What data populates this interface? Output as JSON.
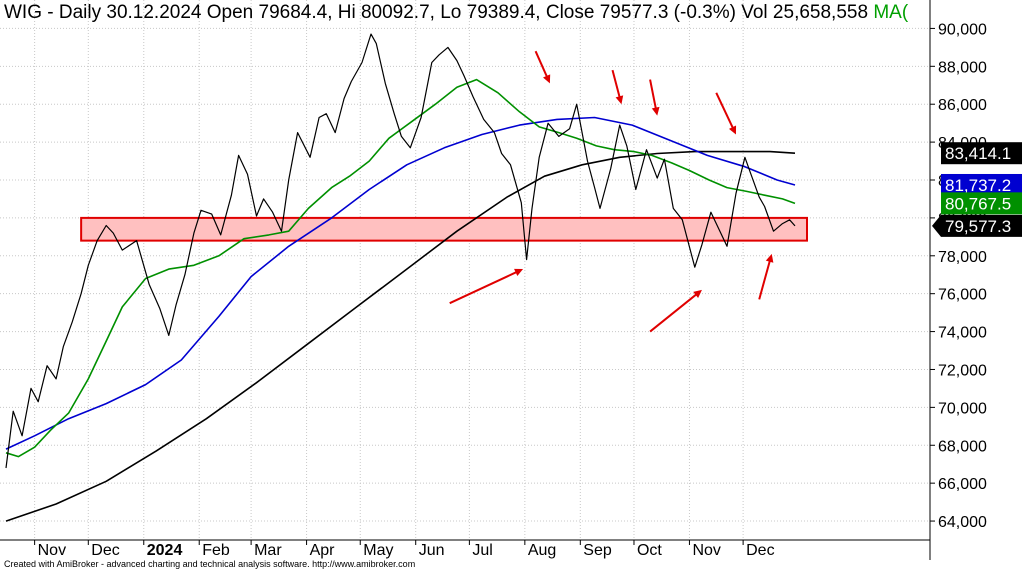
{
  "header": {
    "title": "WIG - Daily 30.12.2024 Open 79684.4, Hi 80092.7, Lo 79389.4, Close 79577.3 (-0.3%) Vol 25,658,558",
    "ma_label": "MA("
  },
  "footer": {
    "credit": "Created with AmiBroker - advanced charting and technical analysis software. http://www.amibroker.com"
  },
  "colors": {
    "price": "#000000",
    "ma_green": "#009000",
    "ma_blue": "#0000d0",
    "ma_black": "#000000",
    "zone_fill": "#ffc0c0",
    "zone_stroke": "#e00000",
    "arrow": "#e00000",
    "grid": "#c8c8c8"
  },
  "chart_data": {
    "type": "line",
    "grid": true,
    "legend": "none",
    "ylim": [
      63000,
      91500
    ],
    "y_ticks": [
      "64,000",
      "66,000",
      "68,000",
      "70,000",
      "72,000",
      "74,000",
      "76,000",
      "78,000",
      "80,000",
      "82,000",
      "84,000",
      "86,000",
      "88,000",
      "90,000"
    ],
    "y_tick_values": [
      64000,
      66000,
      68000,
      70000,
      72000,
      74000,
      76000,
      78000,
      80000,
      82000,
      84000,
      86000,
      88000,
      90000
    ],
    "x_range": [
      "2023-10-16",
      "2024-12-30"
    ],
    "x_ticks": [
      {
        "label": "Nov",
        "date": "2023-11-01",
        "bold": false
      },
      {
        "label": "Dec",
        "date": "2023-12-01",
        "bold": false
      },
      {
        "label": "2024",
        "date": "2024-01-01",
        "bold": true
      },
      {
        "label": "Feb",
        "date": "2024-02-01",
        "bold": false
      },
      {
        "label": "Mar",
        "date": "2024-03-01",
        "bold": false
      },
      {
        "label": "Apr",
        "date": "2024-04-01",
        "bold": false
      },
      {
        "label": "May",
        "date": "2024-05-01",
        "bold": false
      },
      {
        "label": "Jun",
        "date": "2024-06-01",
        "bold": false
      },
      {
        "label": "Jul",
        "date": "2024-07-01",
        "bold": false
      },
      {
        "label": "Aug",
        "date": "2024-08-01",
        "bold": false
      },
      {
        "label": "Sep",
        "date": "2024-09-01",
        "bold": false
      },
      {
        "label": "Oct",
        "date": "2024-10-01",
        "bold": false
      },
      {
        "label": "Nov",
        "date": "2024-11-01",
        "bold": false
      },
      {
        "label": "Dec",
        "date": "2024-12-01",
        "bold": false
      }
    ],
    "ohlc": {
      "date": "30.12.2024",
      "open": 79684.4,
      "high": 80092.7,
      "low": 79389.4,
      "close": 79577.3,
      "change_pct": -0.3,
      "volume": 25658558
    },
    "value_labels": [
      {
        "text": "83,414.1",
        "value": 83414.1,
        "bg": "#000000",
        "fg": "#ffffff",
        "pointer": false
      },
      {
        "text": "81,737.2",
        "value": 81737.2,
        "bg": "#0000d0",
        "fg": "#ffffff",
        "pointer": false
      },
      {
        "text": "80,767.5",
        "value": 80767.5,
        "bg": "#009000",
        "fg": "#ffffff",
        "pointer": false
      },
      {
        "text": "79,577.3",
        "value": 79577.3,
        "bg": "#000000",
        "fg": "#ffffff",
        "pointer": true
      }
    ],
    "support_zone": {
      "low": 78800,
      "high": 80000,
      "start": "2023-11-27",
      "end": "2024-12-30"
    },
    "series": [
      {
        "key": "price",
        "color": "#000000",
        "x": [
          "2023-10-16",
          "2023-10-20",
          "2023-10-25",
          "2023-10-30",
          "2023-11-03",
          "2023-11-08",
          "2023-11-13",
          "2023-11-17",
          "2023-11-22",
          "2023-11-27",
          "2023-12-01",
          "2023-12-06",
          "2023-12-11",
          "2023-12-15",
          "2023-12-20",
          "2023-12-28",
          "2024-01-04",
          "2024-01-10",
          "2024-01-15",
          "2024-01-19",
          "2024-01-24",
          "2024-01-29",
          "2024-02-02",
          "2024-02-08",
          "2024-02-13",
          "2024-02-19",
          "2024-02-23",
          "2024-02-28",
          "2024-03-04",
          "2024-03-08",
          "2024-03-13",
          "2024-03-18",
          "2024-03-22",
          "2024-03-27",
          "2024-04-03",
          "2024-04-08",
          "2024-04-12",
          "2024-04-17",
          "2024-04-22",
          "2024-04-26",
          "2024-05-02",
          "2024-05-07",
          "2024-05-10",
          "2024-05-15",
          "2024-05-20",
          "2024-05-24",
          "2024-05-29",
          "2024-06-04",
          "2024-06-10",
          "2024-06-14",
          "2024-06-19",
          "2024-06-24",
          "2024-06-28",
          "2024-07-03",
          "2024-07-09",
          "2024-07-15",
          "2024-07-19",
          "2024-07-24",
          "2024-07-30",
          "2024-08-02",
          "2024-08-05",
          "2024-08-09",
          "2024-08-14",
          "2024-08-20",
          "2024-08-26",
          "2024-08-30",
          "2024-09-05",
          "2024-09-09",
          "2024-09-12",
          "2024-09-18",
          "2024-09-23",
          "2024-09-27",
          "2024-10-02",
          "2024-10-08",
          "2024-10-14",
          "2024-10-18",
          "2024-10-23",
          "2024-10-28",
          "2024-11-04",
          "2024-11-08",
          "2024-11-13",
          "2024-11-18",
          "2024-11-22",
          "2024-11-27",
          "2024-12-02",
          "2024-12-05",
          "2024-12-10",
          "2024-12-13",
          "2024-12-18",
          "2024-12-23",
          "2024-12-27",
          "2024-12-30"
        ],
        "values": [
          66800,
          69800,
          68500,
          71000,
          70300,
          72200,
          71500,
          73200,
          74500,
          76000,
          77500,
          78800,
          79600,
          79200,
          78300,
          78800,
          76500,
          75200,
          73800,
          75400,
          77000,
          79200,
          80400,
          80200,
          79100,
          81200,
          83300,
          82300,
          80100,
          81000,
          80300,
          79300,
          82000,
          84500,
          83200,
          85300,
          85500,
          84500,
          86300,
          87200,
          88200,
          89700,
          89200,
          87100,
          85500,
          84300,
          83700,
          85300,
          88200,
          88600,
          89000,
          88300,
          87500,
          86400,
          85200,
          84500,
          83400,
          82800,
          80800,
          77800,
          80500,
          83200,
          85000,
          84300,
          84700,
          86000,
          83000,
          81600,
          80500,
          82600,
          84900,
          83800,
          81500,
          83600,
          82100,
          83100,
          80500,
          79900,
          77400,
          78600,
          80300,
          79300,
          78500,
          81300,
          83200,
          82400,
          81100,
          80600,
          79300,
          79700,
          79900,
          79577
        ]
      },
      {
        "key": "ma_green",
        "color": "#009000",
        "x": [
          "2023-10-16",
          "2023-10-23",
          "2023-11-01",
          "2023-11-10",
          "2023-11-20",
          "2023-12-01",
          "2023-12-11",
          "2023-12-20",
          "2024-01-02",
          "2024-01-15",
          "2024-01-29",
          "2024-02-12",
          "2024-02-26",
          "2024-03-11",
          "2024-03-22",
          "2024-04-02",
          "2024-04-15",
          "2024-04-25",
          "2024-05-06",
          "2024-05-17",
          "2024-05-30",
          "2024-06-12",
          "2024-06-24",
          "2024-07-05",
          "2024-07-17",
          "2024-07-29",
          "2024-08-09",
          "2024-08-20",
          "2024-08-30",
          "2024-09-10",
          "2024-09-20",
          "2024-10-01",
          "2024-10-11",
          "2024-10-22",
          "2024-11-01",
          "2024-11-12",
          "2024-11-22",
          "2024-12-03",
          "2024-12-13",
          "2024-12-23",
          "2024-12-30"
        ],
        "values": [
          67600,
          67400,
          67900,
          68800,
          69700,
          71500,
          73500,
          75300,
          76800,
          77300,
          77500,
          78000,
          78900,
          79100,
          79300,
          80500,
          81600,
          82200,
          83000,
          84200,
          85100,
          86000,
          86900,
          87300,
          86600,
          85600,
          84800,
          84500,
          84200,
          83800,
          83600,
          83500,
          83300,
          82900,
          82500,
          82000,
          81600,
          81400,
          81200,
          81000,
          80767
        ]
      },
      {
        "key": "ma_blue",
        "color": "#0000d0",
        "x": [
          "2023-10-16",
          "2023-11-01",
          "2023-11-20",
          "2023-12-11",
          "2024-01-02",
          "2024-01-22",
          "2024-02-12",
          "2024-03-01",
          "2024-03-22",
          "2024-04-15",
          "2024-05-06",
          "2024-05-27",
          "2024-06-17",
          "2024-07-08",
          "2024-07-29",
          "2024-08-19",
          "2024-09-09",
          "2024-09-30",
          "2024-10-21",
          "2024-11-11",
          "2024-12-02",
          "2024-12-20",
          "2024-12-30"
        ],
        "values": [
          67800,
          68500,
          69400,
          70200,
          71200,
          72500,
          74800,
          76900,
          78500,
          80000,
          81500,
          82800,
          83700,
          84400,
          84900,
          85200,
          85300,
          84900,
          84100,
          83300,
          82700,
          82000,
          81737
        ]
      },
      {
        "key": "ma_black",
        "color": "#000000",
        "x": [
          "2023-10-16",
          "2023-11-13",
          "2023-12-11",
          "2024-01-08",
          "2024-02-05",
          "2024-03-04",
          "2024-04-01",
          "2024-04-29",
          "2024-05-27",
          "2024-06-24",
          "2024-07-22",
          "2024-08-12",
          "2024-09-02",
          "2024-09-23",
          "2024-10-14",
          "2024-11-04",
          "2024-11-25",
          "2024-12-16",
          "2024-12-30"
        ],
        "values": [
          64000,
          64900,
          66100,
          67700,
          69400,
          71300,
          73300,
          75300,
          77300,
          79300,
          81100,
          82200,
          82800,
          83200,
          83400,
          83500,
          83500,
          83500,
          83414
        ]
      }
    ],
    "arrows": [
      {
        "from": [
          "2024-08-07",
          88800
        ],
        "to": [
          "2024-08-15",
          87100
        ],
        "dir": "down"
      },
      {
        "from": [
          "2024-09-19",
          87800
        ],
        "to": [
          "2024-09-24",
          86000
        ],
        "dir": "down"
      },
      {
        "from": [
          "2024-10-10",
          87300
        ],
        "to": [
          "2024-10-14",
          85400
        ],
        "dir": "down"
      },
      {
        "from": [
          "2024-11-16",
          86600
        ],
        "to": [
          "2024-11-27",
          84400
        ],
        "dir": "down"
      },
      {
        "from": [
          "2024-06-20",
          75500
        ],
        "to": [
          "2024-07-31",
          77300
        ],
        "dir": "up"
      },
      {
        "from": [
          "2024-10-10",
          74000
        ],
        "to": [
          "2024-11-08",
          76200
        ],
        "dir": "up"
      },
      {
        "from": [
          "2024-12-10",
          75700
        ],
        "to": [
          "2024-12-17",
          78100
        ],
        "dir": "up"
      }
    ]
  }
}
